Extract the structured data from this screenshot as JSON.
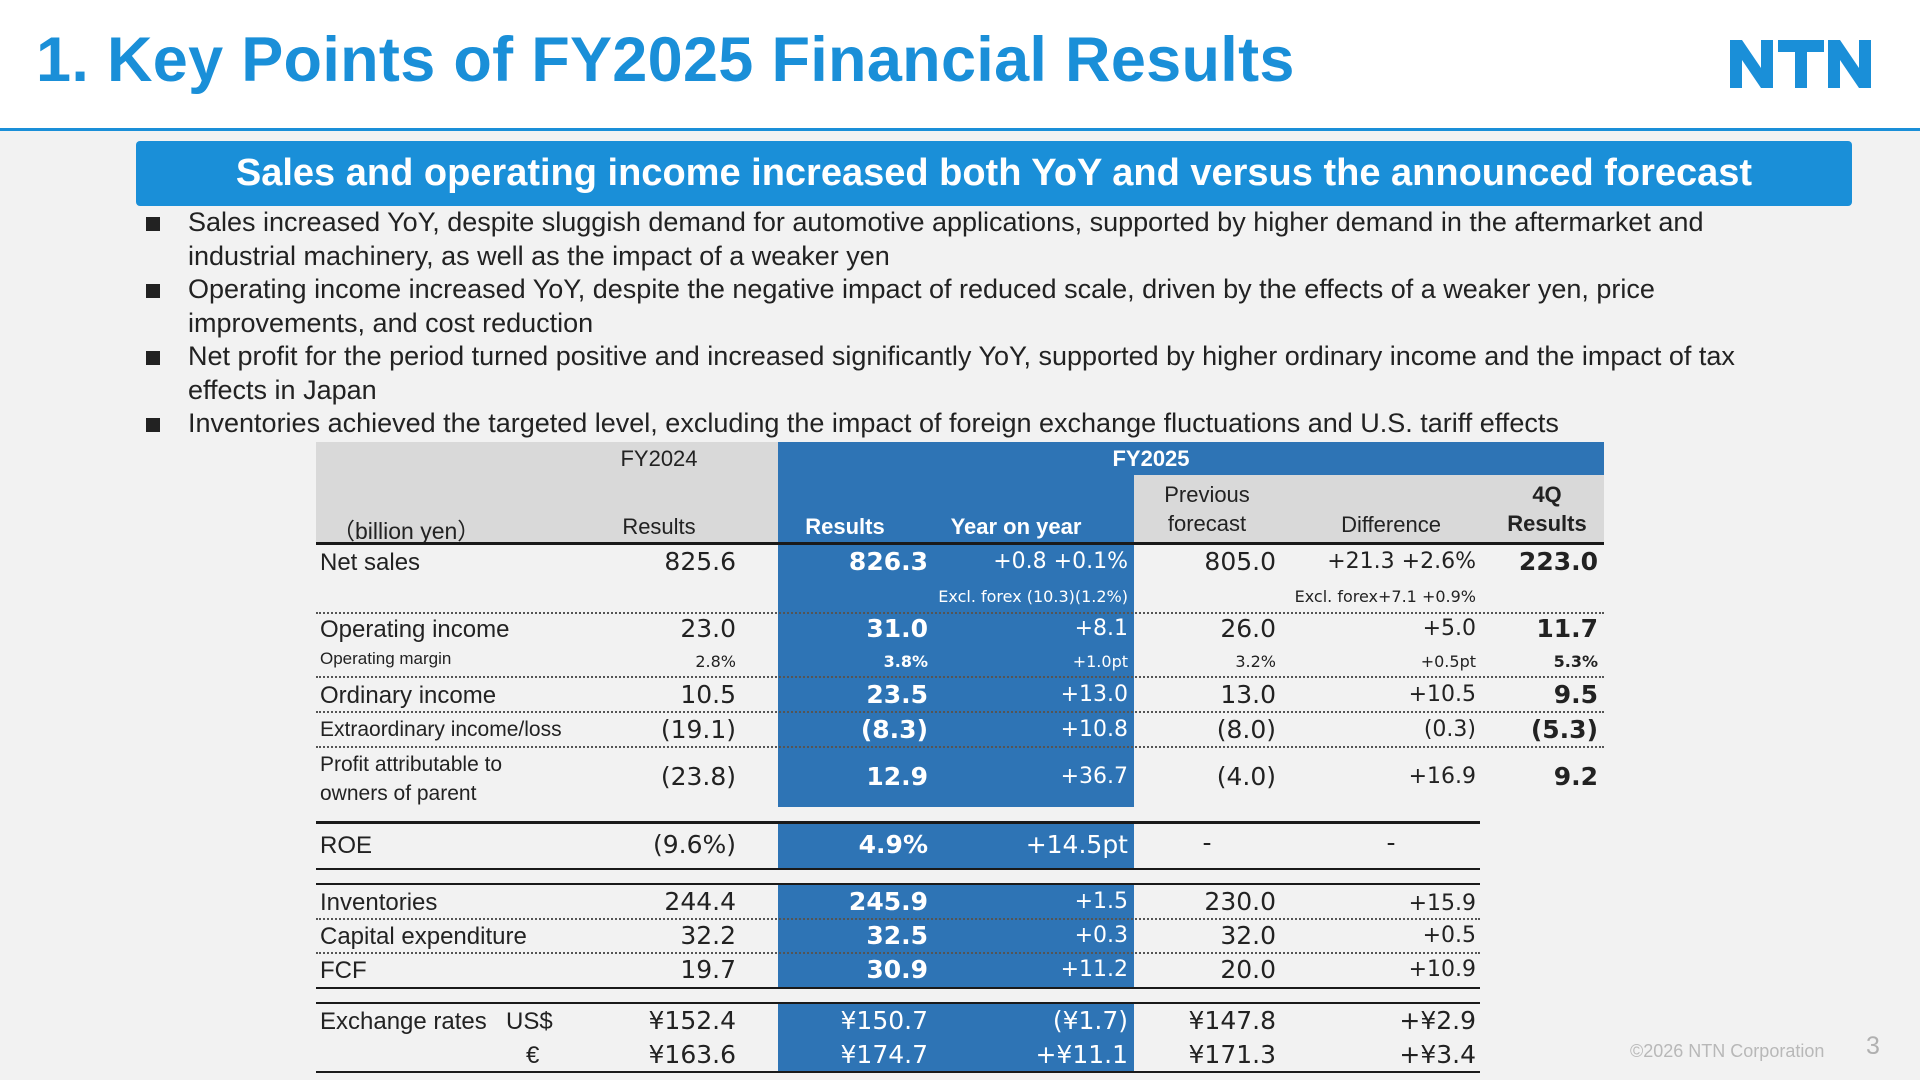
{
  "title": "1. Key Points of FY2025 Financial Results",
  "logo_text": "NTN",
  "brand_color": "#1a8fd8",
  "table_blue": "#2e74b5",
  "banner": "Sales and operating income increased both YoY and versus the announced forecast",
  "bullets": [
    [
      "Sales increased YoY, despite sluggish demand for automotive applications, supported by higher demand in the aftermarket and",
      "industrial machinery, as well as the impact of a weaker yen"
    ],
    [
      "Operating income increased YoY, despite the negative impact of reduced scale, driven by the effects of a weaker yen, price",
      "improvements, and cost reduction"
    ],
    [
      "Net profit for the period turned positive and increased significantly YoY, supported by higher ordinary income and the impact of tax",
      "effects in Japan"
    ],
    [
      "Inventories achieved the targeted level, excluding the impact of foreign exchange fluctuations and U.S. tariff effects"
    ]
  ],
  "table": {
    "unit": "（billion yen）",
    "fy2024": "FY2024",
    "fy2025": "FY2025",
    "col_results": "Results",
    "col_results_bold": "Results",
    "col_yoy": "Year on year",
    "col_prev": [
      "Previous",
      "forecast"
    ],
    "col_diff": "Difference",
    "col_4q": [
      "4Q",
      "Results"
    ],
    "rows": {
      "net_sales": {
        "label": "Net sales",
        "fy24": "825.6",
        "fy25": "826.3",
        "yoy": "+0.8 +0.1%",
        "yoy_note": "Excl. forex (10.3)(1.2%)",
        "prev": "805.0",
        "diff": "+21.3 +2.6%",
        "diff_note": "Excl. forex+7.1 +0.9%",
        "q4": "223.0"
      },
      "op_income": {
        "label": "Operating income",
        "fy24": "23.0",
        "fy25": "31.0",
        "yoy": "+8.1",
        "prev": "26.0",
        "diff": "+5.0",
        "q4": "11.7"
      },
      "op_margin": {
        "label": "Operating margin",
        "fy24": "2.8%",
        "fy25": "3.8%",
        "yoy": "+1.0pt",
        "prev": "3.2%",
        "diff": "+0.5pt",
        "q4": "5.3%"
      },
      "ordinary": {
        "label": "Ordinary income",
        "fy24": "10.5",
        "fy25": "23.5",
        "yoy": "+13.0",
        "prev": "13.0",
        "diff": "+10.5",
        "q4": "9.5"
      },
      "extra": {
        "label": "Extraordinary income/loss",
        "fy24": "(19.1)",
        "fy25": "(8.3)",
        "yoy": "+10.8",
        "prev": "(8.0)",
        "diff": "(0.3)",
        "q4": "(5.3)"
      },
      "profit": {
        "label": [
          "Profit attributable to",
          "owners of parent"
        ],
        "fy24": "(23.8)",
        "fy25": "12.9",
        "yoy": "+36.7",
        "prev": "(4.0)",
        "diff": "+16.9",
        "q4": "9.2"
      },
      "roe": {
        "label": "ROE",
        "fy24": "(9.6%)",
        "fy25": "4.9%",
        "yoy": "+14.5pt",
        "prev": "-",
        "diff": "-"
      },
      "inventories": {
        "label": "Inventories",
        "fy24": "244.4",
        "fy25": "245.9",
        "yoy": "+1.5",
        "prev": "230.0",
        "diff": "+15.9"
      },
      "capex": {
        "label": "Capital expenditure",
        "fy24": "32.2",
        "fy25": "32.5",
        "yoy": "+0.3",
        "prev": "32.0",
        "diff": "+0.5"
      },
      "fcf": {
        "label": "FCF",
        "fy24": "19.7",
        "fy25": "30.9",
        "yoy": "+11.2",
        "prev": "20.0",
        "diff": "+10.9"
      },
      "fx_usd": {
        "label": "Exchange rates",
        "currency": "US$",
        "fy24": "¥152.4",
        "fy25": "¥150.7",
        "yoy": "(¥1.7)",
        "prev": "¥147.8",
        "diff": "+¥2.9"
      },
      "fx_eur": {
        "currency": "€",
        "fy24": "¥163.6",
        "fy25": "¥174.7",
        "yoy": "+¥11.1",
        "prev": "¥171.3",
        "diff": "+¥3.4"
      }
    }
  },
  "footer": {
    "copyright": "©2026 NTN Corporation",
    "page": "3"
  }
}
